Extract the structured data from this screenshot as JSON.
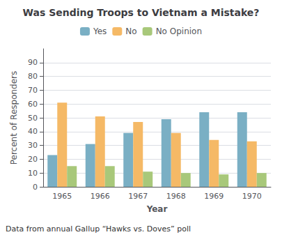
{
  "chart_data": {
    "type": "bar",
    "title": "Was Sending Troops to Vietnam a Mistake?",
    "xlabel": "Year",
    "ylabel": "Percent of Responders",
    "footnote": "Data from annual Gallup “Hawks vs. Doves” poll",
    "categories": [
      "1965",
      "1966",
      "1967",
      "1968",
      "1969",
      "1970"
    ],
    "series": [
      {
        "name": "Yes",
        "color": "#7aafc4",
        "values": [
          23,
          31,
          39,
          49,
          54,
          54
        ]
      },
      {
        "name": "No",
        "color": "#f5b966",
        "values": [
          61,
          51,
          47,
          39,
          34,
          33
        ]
      },
      {
        "name": "No Opinion",
        "color": "#a8c87a",
        "values": [
          15,
          15,
          11,
          10,
          9,
          10
        ]
      }
    ],
    "ylim": [
      0,
      100
    ],
    "yticks": [
      0,
      10,
      20,
      30,
      40,
      50,
      60,
      70,
      80,
      90
    ],
    "grid": true,
    "legend": "top"
  }
}
